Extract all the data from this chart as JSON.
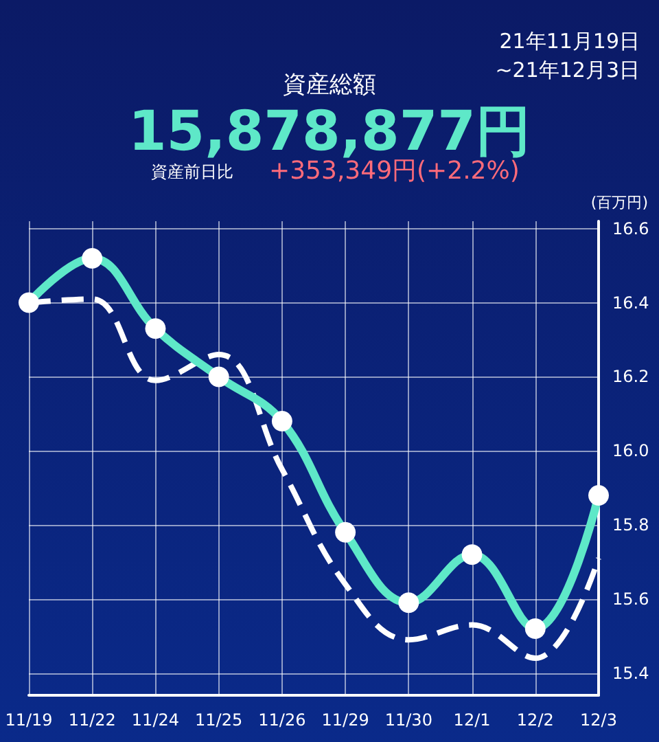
{
  "chart_data": {
    "type": "line",
    "title": "資産総額",
    "subtitle": "15,878,877円",
    "annotations": [
      "資産前日比",
      "+353,349円(+2.2%)",
      "21年11月19日",
      "~21年12月3日"
    ],
    "ylabel": "(百万円)",
    "categories": [
      "11/19",
      "11/22",
      "11/24",
      "11/25",
      "11/26",
      "11/29",
      "11/30",
      "12/1",
      "12/2",
      "12/3"
    ],
    "series": [
      {
        "color": "#5ee8c8",
        "marker": "circle",
        "line_style": "solid",
        "values": [
          16.4,
          16.52,
          16.33,
          16.2,
          16.08,
          15.78,
          15.59,
          15.72,
          15.52,
          15.88
        ]
      },
      {
        "color": "#ffffff",
        "marker": "none",
        "line_style": "dashed",
        "values": [
          16.4,
          16.41,
          16.19,
          16.26,
          15.95,
          15.64,
          15.49,
          15.53,
          15.44,
          15.71
        ]
      }
    ],
    "ylim": [
      15.34,
      16.62
    ],
    "yticks": [
      15.4,
      15.6,
      15.8,
      {
        "value": 16,
        "label": "16.0"
      },
      16.2,
      16.4,
      16.6
    ],
    "grid": true
  }
}
